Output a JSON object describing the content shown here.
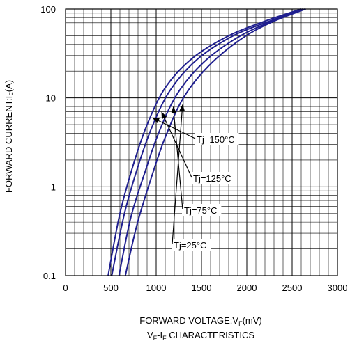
{
  "chart_data": {
    "type": "line",
    "title": "VF-IF CHARACTERISTICS",
    "xlabel": "FORWARD VOLTAGE:VF(mV)",
    "ylabel": "FORWARD CURRENT:IF(A)",
    "xlim": [
      0,
      3000
    ],
    "ylim": [
      0.1,
      100
    ],
    "yscale": "log",
    "grid": true,
    "x_ticks": [
      "0",
      "500",
      "1000",
      "1500",
      "2000",
      "2500",
      "3000"
    ],
    "y_ticks": [
      "0.1",
      "1",
      "10",
      "100"
    ],
    "line_color": "#1f1f8f",
    "series": [
      {
        "name": "Tj=150°C",
        "x": [
          470,
          600,
          750,
          900,
          1100,
          1400,
          1800,
          2200,
          2600
        ],
        "y": [
          0.1,
          0.5,
          1.8,
          5,
          13,
          28,
          50,
          73,
          100
        ]
      },
      {
        "name": "Tj=125°C",
        "x": [
          510,
          650,
          800,
          950,
          1150,
          1450,
          1850,
          2250,
          2620
        ],
        "y": [
          0.1,
          0.5,
          1.7,
          4.6,
          12,
          27,
          50,
          73,
          100
        ]
      },
      {
        "name": "Tj=75°C",
        "x": [
          590,
          720,
          880,
          1030,
          1230,
          1520,
          1900,
          2280,
          2640
        ],
        "y": [
          0.1,
          0.45,
          1.5,
          4.1,
          11,
          25,
          48,
          73,
          100
        ]
      },
      {
        "name": "Tj=25°C",
        "x": [
          660,
          790,
          950,
          1100,
          1300,
          1580,
          1950,
          2300,
          2650
        ],
        "y": [
          0.1,
          0.38,
          1.3,
          3.6,
          10,
          23,
          47,
          73,
          100
        ]
      }
    ],
    "annotations": [
      {
        "label": "Tj=150°C",
        "series": "Tj=150°C"
      },
      {
        "label": "Tj=125°C",
        "series": "Tj=125°C"
      },
      {
        "label": "Tj=75°C",
        "series": "Tj=75°C"
      },
      {
        "label": "Tj=25°C",
        "series": "Tj=25°C"
      }
    ]
  }
}
